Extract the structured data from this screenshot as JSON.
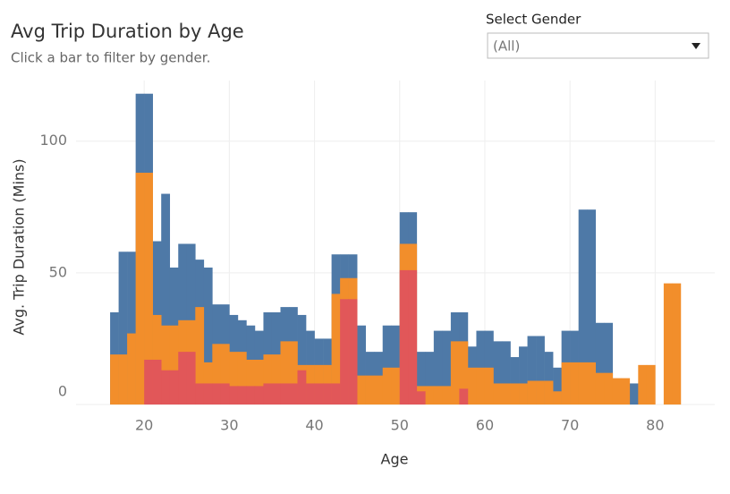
{
  "chart_data": {
    "type": "bar",
    "title": "Avg Trip Duration by Age",
    "subtitle": "Click a bar to filter by gender.",
    "x_label": "Age",
    "y_label": "Avg. Trip Duration (Mins)",
    "x": [
      16,
      17,
      18,
      19,
      20,
      21,
      22,
      23,
      24,
      25,
      26,
      27,
      28,
      29,
      30,
      31,
      32,
      33,
      34,
      35,
      36,
      37,
      38,
      39,
      40,
      41,
      42,
      43,
      44,
      45,
      46,
      47,
      48,
      49,
      50,
      51,
      52,
      53,
      54,
      55,
      56,
      57,
      58,
      59,
      60,
      61,
      62,
      63,
      64,
      65,
      66,
      67,
      68,
      69,
      70,
      71,
      72,
      73,
      74,
      75,
      76,
      77,
      78,
      79,
      80,
      81,
      82
    ],
    "series": [
      {
        "color": "#4e79a7",
        "values": [
          35,
          58,
          58,
          118,
          118,
          62,
          80,
          52,
          61,
          61,
          55,
          52,
          38,
          38,
          34,
          32,
          30,
          28,
          35,
          35,
          37,
          37,
          34,
          28,
          25,
          25,
          57,
          57,
          57,
          30,
          20,
          20,
          30,
          30,
          73,
          73,
          20,
          20,
          28,
          28,
          35,
          35,
          22,
          28,
          28,
          24,
          24,
          18,
          22,
          26,
          26,
          20,
          14,
          28,
          28,
          74,
          74,
          31,
          31,
          null,
          null,
          8,
          8,
          null,
          null,
          null,
          null
        ]
      },
      {
        "color": "#f28e2b",
        "values": [
          19,
          19,
          27,
          88,
          88,
          34,
          30,
          30,
          32,
          32,
          37,
          16,
          23,
          23,
          20,
          20,
          17,
          17,
          19,
          19,
          24,
          24,
          15,
          15,
          15,
          15,
          42,
          48,
          48,
          11,
          11,
          11,
          14,
          14,
          61,
          61,
          7,
          7,
          7,
          7,
          24,
          24,
          14,
          14,
          14,
          8,
          8,
          8,
          8,
          9,
          9,
          9,
          5,
          16,
          16,
          16,
          16,
          12,
          12,
          10,
          10,
          null,
          15,
          15,
          null,
          46,
          46
        ]
      },
      {
        "color": "#e15759",
        "values": [
          null,
          null,
          null,
          null,
          17,
          17,
          13,
          13,
          20,
          20,
          8,
          8,
          8,
          8,
          7,
          7,
          7,
          7,
          8,
          8,
          8,
          8,
          13,
          8,
          8,
          8,
          8,
          40,
          40,
          null,
          null,
          null,
          null,
          null,
          51,
          51,
          5,
          null,
          null,
          null,
          null,
          6,
          null,
          null,
          null,
          null,
          null,
          null,
          null,
          null,
          null,
          null,
          null,
          null,
          null,
          null,
          null,
          null,
          null,
          null,
          null,
          null,
          null,
          null,
          null,
          null,
          null
        ]
      }
    ],
    "xlim": [
      12,
      87
    ],
    "xticks": [
      20,
      30,
      40,
      50,
      60,
      70,
      80
    ],
    "ylim": [
      0,
      123
    ],
    "yticks": [
      0,
      50,
      100
    ],
    "grid": true
  },
  "filter": {
    "label": "Select Gender",
    "value": "(All)"
  }
}
